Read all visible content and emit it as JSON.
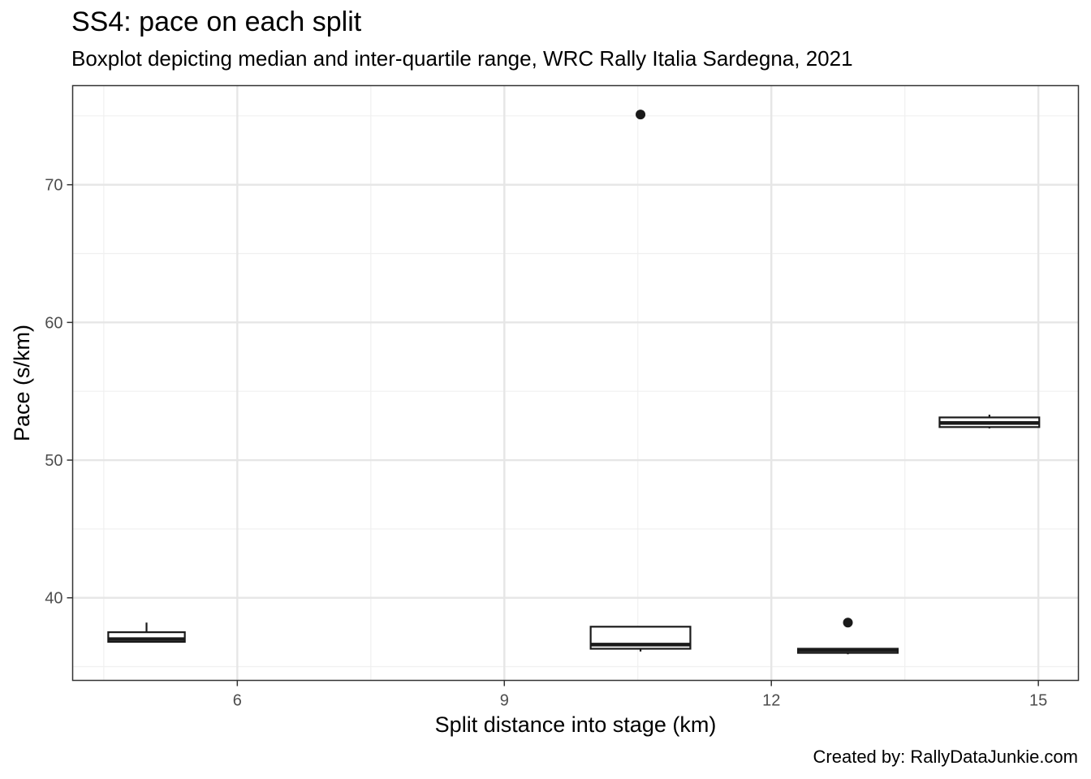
{
  "chart_data": {
    "type": "boxplot",
    "title": "SS4: pace on each split",
    "subtitle": "Boxplot depicting median and inter-quartile range, WRC Rally Italia Sardegna, 2021",
    "caption": "Created by: RallyDataJunkie.com",
    "xlabel": "Split distance into stage (km)",
    "ylabel": "Pace (s/km)",
    "xlim": [
      4.15,
      15.45
    ],
    "ylim": [
      34.0,
      77.2
    ],
    "x_ticks": [
      6,
      9,
      12,
      15
    ],
    "y_ticks": [
      40,
      50,
      60,
      70
    ],
    "grid": true,
    "colors": {
      "box_fill": "#ffffff",
      "box_stroke": "#1a1a1a",
      "grid_major": "#e6e6e6",
      "grid_minor": "#f0f0f0",
      "panel_border": "#333333"
    },
    "series": [
      {
        "x": 4.98,
        "half_width": 0.43,
        "whisker_low": 36.8,
        "q1": 36.8,
        "median": 37.0,
        "q3": 37.5,
        "whisker_high": 38.2,
        "outliers": []
      },
      {
        "x": 10.53,
        "half_width": 0.56,
        "whisker_low": 36.1,
        "q1": 36.3,
        "median": 36.6,
        "q3": 37.9,
        "whisker_high": 37.9,
        "outliers": [
          75.1
        ]
      },
      {
        "x": 12.86,
        "half_width": 0.56,
        "whisker_low": 35.9,
        "q1": 36.0,
        "median": 36.2,
        "q3": 36.3,
        "whisker_high": 36.3,
        "outliers": [
          38.2
        ]
      },
      {
        "x": 14.45,
        "half_width": 0.56,
        "whisker_low": 52.3,
        "q1": 52.4,
        "median": 52.7,
        "q3": 53.1,
        "whisker_high": 53.3,
        "outliers": []
      }
    ]
  }
}
